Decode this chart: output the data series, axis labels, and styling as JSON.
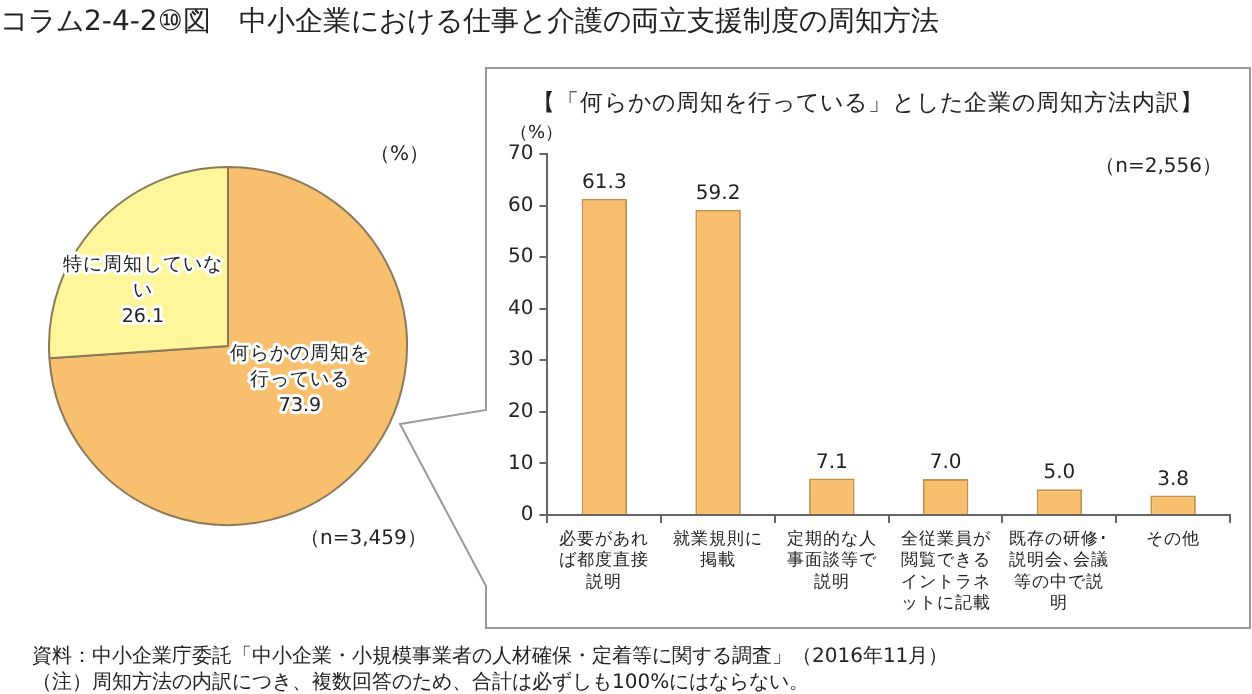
{
  "chart_data": [
    {
      "type": "pie",
      "title": "コラム2-4-2⑩図　中小企業における仕事と介護の両立支援制度の周知方法",
      "categories": [
        "何らかの周知を行っている",
        "特に周知していない"
      ],
      "values": [
        73.9,
        26.1
      ],
      "colors": [
        "#f8c06e",
        "#fff59b"
      ],
      "data_labels": true,
      "legend": false,
      "annotations": [
        "（%）",
        "（n=3,459）",
        "資料：中小企業庁委託「中小企業・小規模事業者の人材確保・定着等に関する調査」（2016年11月）",
        "（注）周知方法の内訳につき、複数回答のため、合計は必ずしも100%にはならない。"
      ]
    },
    {
      "type": "bar",
      "title": "【「何らかの周知を行っている」とした企業の周知方法内訳】",
      "ylabel": "（%）",
      "categories": [
        "必要があれば都度直接説明",
        "就業規則に掲載",
        "定期的な人事面談等で説明",
        "全従業員が閲覧できるイントラネットに記載",
        "既存の研修･説明会､会議等の中で説明",
        "その他"
      ],
      "values": [
        61.3,
        59.2,
        7.1,
        7.0,
        5.0,
        3.8
      ],
      "color": "#f8c06e",
      "ylim": [
        0,
        70
      ],
      "yticks": [
        0,
        10,
        20,
        30,
        40,
        50,
        60,
        70
      ],
      "grid": false,
      "legend": false,
      "value_labels": [
        "61.3",
        "59.2",
        "7.1",
        "7.0",
        "5.0",
        "3.8"
      ],
      "annotations": [
        "（n=2,556）"
      ]
    }
  ]
}
